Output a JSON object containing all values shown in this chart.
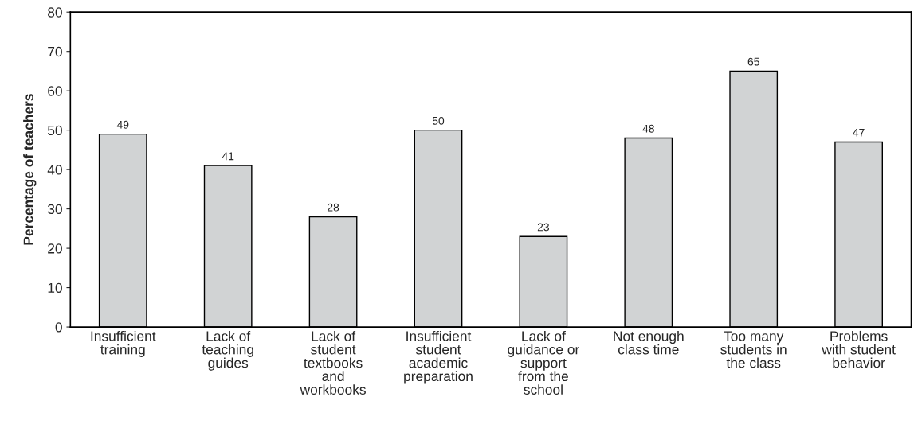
{
  "chart_data": {
    "type": "bar",
    "ylabel": "Percentage of teachers",
    "categories": [
      "Insufficient\ntraining",
      "Lack of\nteaching\nguides",
      "Lack of\nstudent\ntextbooks\nand\nworkbooks",
      "Insufficient\nstudent\nacademic\npreparation",
      "Lack of\nguidance or\nsupport\nfrom the\nschool",
      "Not enough\nclass time",
      "Too many\nstudents in\nthe class",
      "Problems\nwith student\nbehavior"
    ],
    "values": [
      49,
      41,
      28,
      50,
      23,
      48,
      65,
      47
    ],
    "color": "#d1d3d4",
    "ylim": [
      0,
      80
    ],
    "yticks": [
      0,
      10,
      20,
      30,
      40,
      50,
      60,
      70,
      80
    ],
    "data_labels": true,
    "grid": false
  }
}
